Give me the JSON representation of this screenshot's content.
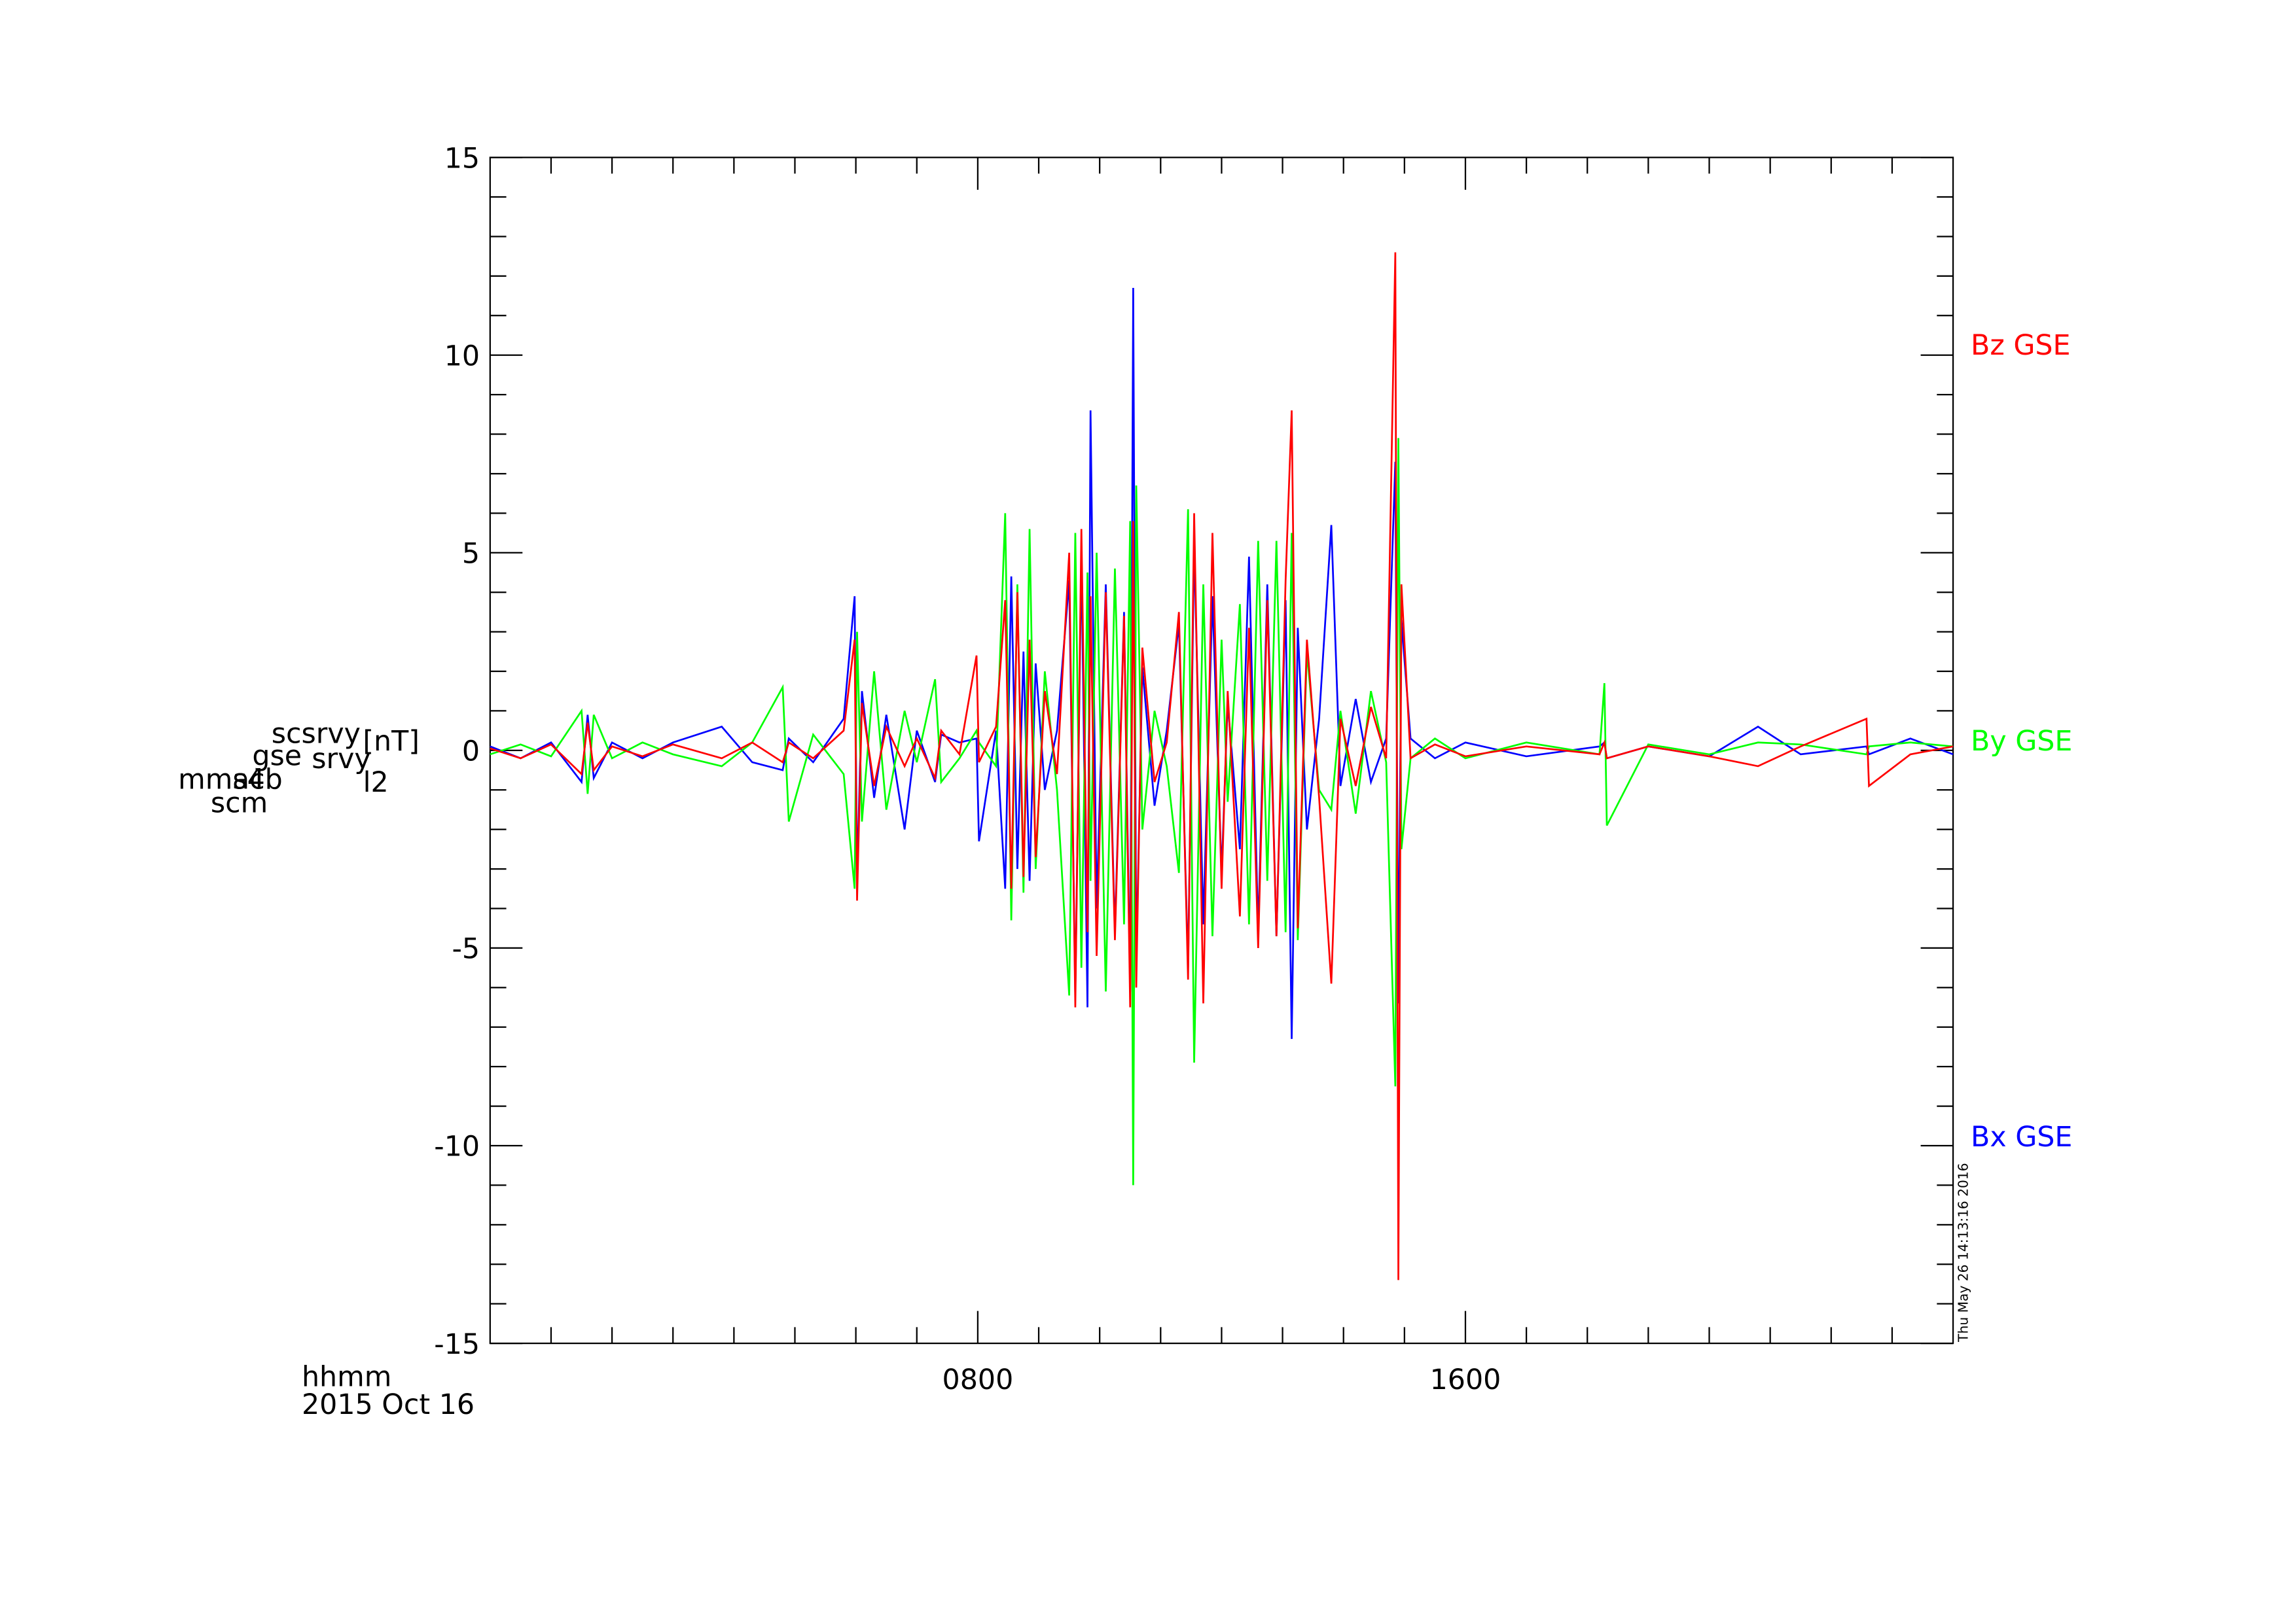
{
  "chart_data": {
    "type": "line",
    "ylabel_lines": [
      "mms4",
      "scm",
      "acb",
      "gse",
      "scsrvy",
      "srvy",
      "l2",
      "[nT]"
    ],
    "xlabel_lines": [
      "hhmm",
      "2015 Oct 16"
    ],
    "timestamp": "Thu May 26 14:13:16 2016",
    "xlim": [
      0,
      24
    ],
    "ylim": [
      -15,
      15
    ],
    "xticks": [
      {
        "value": 8,
        "label": "0800"
      },
      {
        "value": 16,
        "label": "1600"
      }
    ],
    "xminorticks": [
      1,
      2,
      3,
      4,
      5,
      6,
      7,
      9,
      10,
      11,
      12,
      13,
      14,
      15,
      17,
      18,
      19,
      20,
      21,
      22,
      23
    ],
    "yticks": [
      -15,
      -10,
      -5,
      0,
      5,
      10,
      15
    ],
    "yminorticks": [
      -14,
      -13,
      -12,
      -11,
      -9,
      -8,
      -7,
      -6,
      -4,
      -3,
      -2,
      -1,
      1,
      2,
      3,
      4,
      6,
      7,
      8,
      9,
      11,
      12,
      13,
      14
    ],
    "x": [
      0.0,
      0.5,
      1.0,
      1.5,
      1.6,
      1.7,
      2.0,
      2.5,
      3.0,
      3.8,
      4.3,
      4.8,
      4.9,
      5.3,
      5.8,
      5.98,
      6.02,
      6.1,
      6.3,
      6.5,
      6.8,
      7.0,
      7.3,
      7.4,
      7.7,
      7.98,
      8.02,
      8.3,
      8.45,
      8.55,
      8.65,
      8.75,
      8.85,
      8.95,
      9.1,
      9.3,
      9.5,
      9.6,
      9.7,
      9.8,
      9.85,
      9.95,
      10.1,
      10.25,
      10.4,
      10.5,
      10.55,
      10.6,
      10.7,
      10.9,
      11.1,
      11.3,
      11.45,
      11.55,
      11.7,
      11.85,
      12.0,
      12.1,
      12.3,
      12.45,
      12.6,
      12.75,
      12.9,
      13.05,
      13.15,
      13.25,
      13.4,
      13.6,
      13.8,
      13.95,
      14.2,
      14.45,
      14.7,
      14.85,
      14.9,
      14.95,
      15.1,
      15.5,
      16.0,
      17.0,
      18.2,
      18.28,
      18.32,
      19.0,
      20.0,
      20.8,
      21.5,
      22.58,
      22.62,
      23.3,
      24.0
    ],
    "series": [
      {
        "name": "Bx GSE",
        "color": "#0000ff",
        "values": [
          0.1,
          -0.2,
          0.2,
          -0.8,
          0.9,
          -0.7,
          0.2,
          -0.2,
          0.2,
          0.6,
          -0.3,
          -0.5,
          0.3,
          -0.3,
          0.8,
          3.9,
          -3.3,
          1.5,
          -1.2,
          0.9,
          -2.0,
          0.5,
          -0.8,
          0.4,
          0.2,
          0.3,
          -2.3,
          0.5,
          -3.5,
          4.4,
          -3.0,
          2.5,
          -3.3,
          2.2,
          -1.0,
          0.5,
          4.3,
          -6.2,
          5.0,
          -6.5,
          8.6,
          -4.0,
          4.2,
          -4.6,
          3.5,
          -6.1,
          11.7,
          -5.4,
          2.1,
          -1.4,
          0.5,
          3.2,
          -5.5,
          5.2,
          -4.4,
          3.9,
          -3.1,
          1.2,
          -2.5,
          4.9,
          -4.6,
          4.2,
          -4.7,
          3.8,
          -7.3,
          3.1,
          -2.0,
          0.8,
          5.7,
          -0.9,
          1.3,
          -0.8,
          0.3,
          7.3,
          -6.4,
          3.3,
          0.3,
          -0.2,
          0.2,
          -0.15,
          0.1,
          0.2,
          -0.2,
          0.1,
          -0.15,
          0.6,
          -0.1,
          0.1,
          -0.1,
          0.3,
          -0.1
        ]
      },
      {
        "name": "By GSE",
        "color": "#00ff00",
        "values": [
          -0.1,
          0.15,
          -0.15,
          1.0,
          -1.1,
          0.9,
          -0.2,
          0.2,
          -0.1,
          -0.4,
          0.2,
          1.6,
          -1.8,
          0.4,
          -0.6,
          -3.5,
          3.0,
          -1.8,
          2.0,
          -1.5,
          1.0,
          -0.3,
          1.8,
          -0.8,
          -0.2,
          0.5,
          0.2,
          -0.4,
          6.0,
          -4.3,
          4.2,
          -3.6,
          5.6,
          -3.0,
          2.0,
          -1.0,
          -6.2,
          5.5,
          -5.5,
          4.5,
          -3.3,
          5.0,
          -6.1,
          4.6,
          -4.4,
          5.8,
          -11.0,
          6.7,
          -2.0,
          1.0,
          -0.4,
          -3.1,
          6.1,
          -7.9,
          4.2,
          -4.7,
          2.8,
          -1.3,
          3.7,
          -4.4,
          5.3,
          -3.3,
          5.3,
          -4.6,
          5.5,
          -4.8,
          2.5,
          -1.0,
          -1.5,
          1.0,
          -1.6,
          1.5,
          -0.3,
          -8.5,
          7.9,
          -2.5,
          -0.2,
          0.3,
          -0.2,
          0.2,
          -0.1,
          1.7,
          -1.9,
          0.15,
          -0.1,
          0.2,
          0.15,
          -0.1,
          0.1,
          0.2,
          0.1
        ]
      },
      {
        "name": "Bz GSE",
        "color": "#ff0000",
        "values": [
          0.05,
          -0.2,
          0.15,
          -0.6,
          0.7,
          -0.5,
          0.1,
          -0.15,
          0.15,
          -0.2,
          0.2,
          -0.3,
          0.2,
          -0.2,
          0.5,
          2.8,
          -3.8,
          1.2,
          -0.9,
          0.6,
          -0.4,
          0.3,
          -0.7,
          0.5,
          -0.1,
          2.4,
          -0.3,
          0.6,
          3.8,
          -3.5,
          4.0,
          -3.2,
          2.8,
          -2.7,
          1.5,
          -0.6,
          5.0,
          -6.5,
          5.6,
          -4.6,
          3.9,
          -5.2,
          4.0,
          -4.8,
          3.4,
          -6.5,
          5.8,
          -6.0,
          2.6,
          -0.8,
          0.2,
          3.5,
          -5.8,
          6.0,
          -6.4,
          5.5,
          -3.5,
          1.5,
          -4.2,
          3.1,
          -5.0,
          3.8,
          -4.7,
          4.3,
          8.6,
          -4.5,
          2.8,
          -1.2,
          -5.9,
          0.8,
          -0.9,
          1.1,
          -0.2,
          12.6,
          -13.4,
          4.2,
          -0.2,
          0.15,
          -0.15,
          0.1,
          -0.1,
          0.2,
          -0.2,
          0.1,
          -0.15,
          -0.4,
          0.1,
          0.8,
          -0.9,
          -0.1,
          0.1
        ]
      }
    ]
  }
}
